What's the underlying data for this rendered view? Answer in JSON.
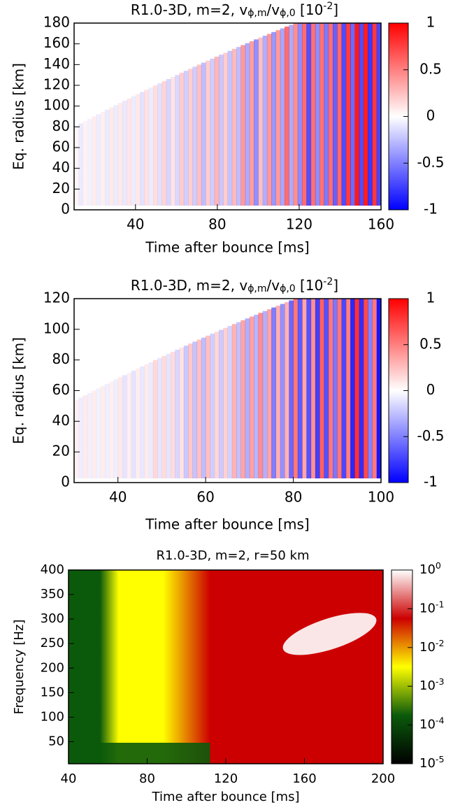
{
  "chart_data": [
    {
      "type": "heatmap",
      "title_parts": [
        {
          "text": "R1.0-3D, m=2, v"
        },
        {
          "text": "ϕ,m",
          "shift": "sub"
        },
        {
          "text": "/v"
        },
        {
          "text": "ϕ,0",
          "shift": "sub"
        },
        {
          "text": " [10"
        },
        {
          "text": "-2",
          "shift": "super"
        },
        {
          "text": "]"
        }
      ],
      "xlabel": "Time after bounce [ms]",
      "ylabel": "Eq. radius [km]",
      "xlim": [
        10,
        160
      ],
      "xticks": [
        40,
        80,
        120,
        160
      ],
      "ylim": [
        0,
        180
      ],
      "yticks": [
        0,
        20,
        40,
        60,
        80,
        100,
        120,
        140,
        160,
        180
      ],
      "colorscale": [
        "#0000ff",
        "#ffffff",
        "#ff0000"
      ],
      "clim": [
        -1,
        1
      ],
      "cticks": [
        -1,
        -0.5,
        0,
        0.5,
        1
      ],
      "log_color": false
    },
    {
      "type": "heatmap",
      "title_parts": [
        {
          "text": "R1.0-3D, m=2, v"
        },
        {
          "text": "ϕ,m",
          "shift": "sub"
        },
        {
          "text": "/v"
        },
        {
          "text": "ϕ,0",
          "shift": "sub"
        },
        {
          "text": " [10"
        },
        {
          "text": "-2",
          "shift": "super"
        },
        {
          "text": "]"
        }
      ],
      "xlabel": "Time after bounce [ms]",
      "ylabel": "Eq. radius [km]",
      "xlim": [
        30,
        100
      ],
      "xticks": [
        40,
        60,
        80,
        100
      ],
      "ylim": [
        0,
        120
      ],
      "yticks": [
        0,
        20,
        40,
        60,
        80,
        100,
        120
      ],
      "colorscale": [
        "#0000ff",
        "#ffffff",
        "#ff0000"
      ],
      "clim": [
        -1,
        1
      ],
      "cticks": [
        -1,
        -0.5,
        0,
        0.5,
        1
      ],
      "log_color": false
    },
    {
      "type": "heatmap",
      "title_parts": [
        {
          "text": "R1.0-3D, m=2, r=50 km"
        }
      ],
      "xlabel": "Time after bounce [ms]",
      "ylabel": "Frequency [Hz]",
      "xlim": [
        40,
        200
      ],
      "xticks": [
        40,
        80,
        120,
        160,
        200
      ],
      "ylim": [
        5,
        400
      ],
      "yticks": [
        50,
        100,
        150,
        200,
        250,
        300,
        350,
        400
      ],
      "colorscale": [
        "#000000",
        "#0b5a0b",
        "#ffff00",
        "#cc0000",
        "#ffffff"
      ],
      "clim": [
        1e-05,
        1
      ],
      "cticks": [
        {
          "value": 1e-05,
          "label": "10",
          "exponent": "-5"
        },
        {
          "value": 0.0001,
          "label": "10",
          "exponent": "-4"
        },
        {
          "value": 0.001,
          "label": "10",
          "exponent": "-3"
        },
        {
          "value": 0.01,
          "label": "10",
          "exponent": "-2"
        },
        {
          "value": 0.1,
          "label": "10",
          "exponent": "-1"
        },
        {
          "value": 1,
          "label": "10",
          "exponent": "0"
        }
      ],
      "log_color": true
    }
  ]
}
